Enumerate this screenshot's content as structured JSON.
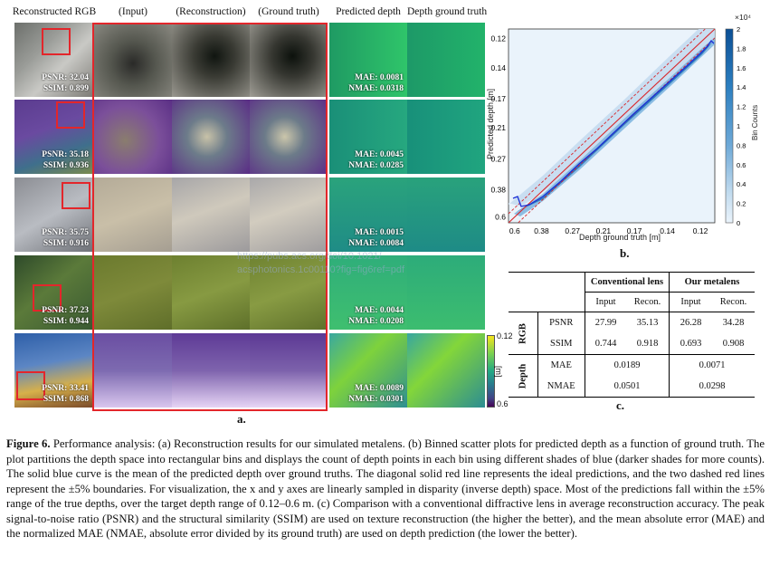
{
  "panel_a": {
    "headers": [
      "Reconstructed RGB",
      "(Input)",
      "(Reconstruction)",
      "(Ground truth)",
      "Predicted depth",
      "Depth ground truth"
    ],
    "rows": [
      {
        "psnr": "PSNR: 32.04",
        "ssim": "SSIM: 0.899",
        "mae": "MAE: 0.0081",
        "nmae": "NMAE: 0.0318"
      },
      {
        "psnr": "PSNR: 35.18",
        "ssim": "SSIM: 0.936",
        "mae": "MAE: 0.0045",
        "nmae": "NMAE: 0.0285"
      },
      {
        "psnr": "PSNR: 35.75",
        "ssim": "SSIM: 0.916",
        "mae": "MAE: 0.0015",
        "nmae": "NMAE: 0.0084"
      },
      {
        "psnr": "PSNR: 37.23",
        "ssim": "SSIM: 0.944",
        "mae": "MAE: 0.0044",
        "nmae": "NMAE: 0.0208"
      },
      {
        "psnr": "PSNR: 33.41",
        "ssim": "SSIM: 0.868",
        "mae": "MAE: 0.0089",
        "nmae": "NMAE: 0.0301"
      }
    ],
    "colorbar": {
      "top": "0.12",
      "bottom": "0.6",
      "unit": "[m]"
    },
    "label": "a."
  },
  "panel_b": {
    "label": "b.",
    "xlabel": "Depth ground truth [m]",
    "ylabel": "Predicted depth [m]",
    "x_ticks": [
      "0.6",
      "0.38",
      "0.27",
      "0.21",
      "0.17",
      "0.14",
      "0.12"
    ],
    "y_ticks": [
      "0.12",
      "0.14",
      "0.17",
      "0.21",
      "0.27",
      "0.38",
      "0.6"
    ],
    "colorbar_ticks": [
      "0",
      "0.2",
      "0.4",
      "0.6",
      "0.8",
      "1",
      "1.2",
      "1.4",
      "1.6",
      "1.8",
      "2"
    ],
    "colorbar_exponent": "×10⁴",
    "colorbar_label": "Bin Counts"
  },
  "panel_c": {
    "label": "c.",
    "groups": [
      "Conventional lens",
      "Our metalens"
    ],
    "subheaders": [
      "Input",
      "Recon.",
      "Input",
      "Recon."
    ],
    "sections": [
      {
        "name": "RGB",
        "rows": [
          {
            "metric": "PSNR",
            "values": [
              "27.99",
              "35.13",
              "26.28",
              "34.28"
            ]
          },
          {
            "metric": "SSIM",
            "values": [
              "0.744",
              "0.918",
              "0.693",
              "0.908"
            ]
          }
        ]
      },
      {
        "name": "Depth",
        "rows": [
          {
            "metric": "MAE",
            "values": [
              "0.0189",
              "0.0071"
            ]
          },
          {
            "metric": "NMAE",
            "values": [
              "0.0501",
              "0.0298"
            ]
          }
        ]
      }
    ]
  },
  "watermark": [
    "https://pubs.acs.org/doi/10.1021/",
    "acsphotonics.1c00110?fig=fig6ref=pdf"
  ],
  "caption": {
    "label": "Figure 6.",
    "text": "Performance analysis: (a) Reconstruction results for our simulated metalens. (b) Binned scatter plots for predicted depth as a function of ground truth. The plot partitions the depth space into rectangular bins and displays the count of depth points in each bin using different shades of blue (darker shades for more counts). The solid blue curve is the mean of the predicted depth over ground truths. The diagonal solid red line represents the ideal predictions, and the two dashed red lines represent the ±5% boundaries. For visualization, the x and y axes are linearly sampled in disparity (inverse depth) space. Most of the predictions fall within the ±5% range of the true depths, over the target depth range of 0.12–0.6 m. (c) Comparison with a conventional diffractive lens in average reconstruction accuracy. The peak signal-to-noise ratio (PSNR) and the structural similarity (SSIM) are used on texture reconstruction (the higher the better), and the mean absolute error (MAE) and the normalized MAE (NMAE, absolute error divided by its ground truth) are used on depth prediction (the lower the better)."
  }
}
